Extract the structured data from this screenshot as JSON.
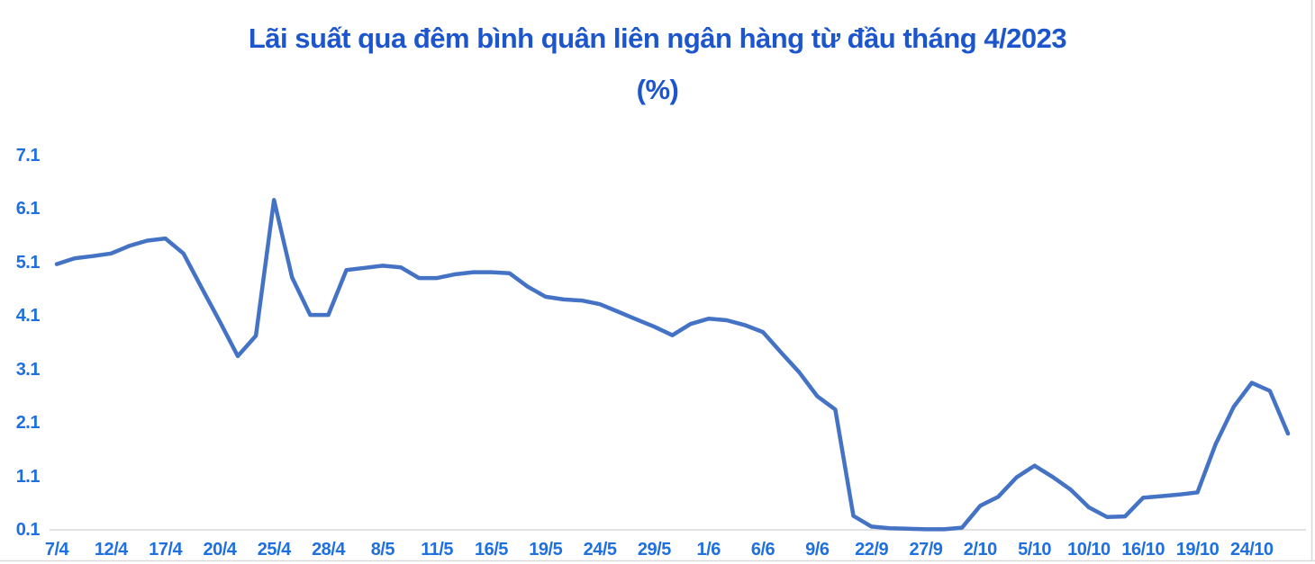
{
  "chart_data": {
    "type": "line",
    "title": "Lãi suất qua đêm bình quân liên ngân hàng từ đầu tháng 4/2023",
    "title_line2": "(%)",
    "ylim": [
      0.1,
      7.1
    ],
    "y_ticks": [
      7.1,
      6.1,
      5.1,
      4.1,
      3.1,
      2.1,
      1.1,
      0.1
    ],
    "grid": "single horizontal gridline at 0.1 only",
    "legend_position": "none",
    "x_tick_labels": [
      "7/4",
      "12/4",
      "17/4",
      "20/4",
      "25/4",
      "28/4",
      "8/5",
      "11/5",
      "16/5",
      "19/5",
      "24/5",
      "29/5",
      "1/6",
      "6/6",
      "9/6",
      "22/9",
      "27/9",
      "2/10",
      "5/10",
      "10/10",
      "16/10",
      "19/10",
      "24/10"
    ],
    "label_every_n_points": 3,
    "values": [
      5.07,
      5.18,
      5.22,
      5.27,
      5.41,
      5.51,
      5.55,
      5.27,
      4.63,
      4.0,
      3.35,
      3.73,
      6.27,
      4.82,
      4.12,
      4.12,
      4.96,
      5.0,
      5.04,
      5.01,
      4.81,
      4.81,
      4.88,
      4.92,
      4.92,
      4.9,
      4.65,
      4.46,
      4.41,
      4.39,
      4.32,
      4.18,
      4.04,
      3.9,
      3.74,
      3.95,
      4.05,
      4.02,
      3.93,
      3.8,
      3.42,
      3.05,
      2.6,
      2.35,
      0.36,
      0.16,
      0.13,
      0.12,
      0.11,
      0.11,
      0.14,
      0.55,
      0.72,
      1.08,
      1.3,
      1.09,
      0.85,
      0.52,
      0.34,
      0.35,
      0.7,
      0.73,
      0.76,
      0.8,
      1.7,
      2.4,
      2.85,
      2.7,
      1.9
    ],
    "colors": {
      "line": "#4472C4",
      "tick_labels": "#1E70E0",
      "title": "#1C55CC",
      "gridline": "#D9D9D9"
    }
  }
}
